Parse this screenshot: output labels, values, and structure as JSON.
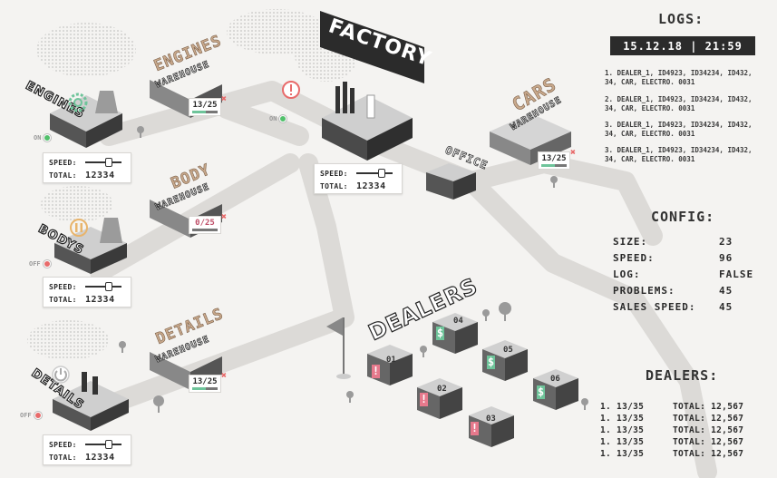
{
  "producers": {
    "engines": {
      "label": "ENGINES",
      "status": "ON",
      "icon": "gear-icon",
      "speed_label": "SPEED:",
      "total_label": "TOTAL:",
      "total": "12334",
      "speed_fraction": 0.55
    },
    "bodys": {
      "label": "BODYS",
      "status": "OFF",
      "icon": "pause-icon",
      "speed_label": "SPEED:",
      "total_label": "TOTAL:",
      "total": "12334",
      "speed_fraction": 0.55
    },
    "details": {
      "label": "DETAILS",
      "status": "OFF",
      "icon": "power-icon",
      "speed_label": "SPEED:",
      "total_label": "TOTAL:",
      "total": "12334",
      "speed_fraction": 0.55
    }
  },
  "warehouses": {
    "engines": {
      "title": "ENGINES",
      "sub": "WAREHOUSE",
      "count": "13/25",
      "fill_fraction": 0.52
    },
    "body": {
      "title": "BODY",
      "sub": "WAREHOUSE",
      "count": "0/25",
      "fill_fraction": 0.0
    },
    "details": {
      "title": "DETAILS",
      "sub": "WAREHOUSE",
      "count": "13/25",
      "fill_fraction": 0.52
    },
    "cars": {
      "title": "CARS",
      "sub": "WAREHOUSE",
      "count": "13/25",
      "fill_fraction": 0.52
    }
  },
  "factory": {
    "label": "FACTORY",
    "status": "ON",
    "alert_icon": "alert-icon",
    "speed_label": "SPEED:",
    "total_label": "TOTAL:",
    "total": "12334",
    "speed_fraction": 0.6
  },
  "office": {
    "label": "OFFICE"
  },
  "dealers_area": {
    "label": "DEALERS",
    "buildings": [
      {
        "num": "01",
        "state": "!"
      },
      {
        "num": "02",
        "state": "!"
      },
      {
        "num": "03",
        "state": "!"
      },
      {
        "num": "04",
        "state": "$"
      },
      {
        "num": "05",
        "state": "$"
      },
      {
        "num": "06",
        "state": "$"
      }
    ]
  },
  "logs": {
    "title": "LOGS:",
    "datetime": "15.12.18 | 21:59",
    "entries": [
      "1. DEALER_1, ID4923, ID34234, ID432, 34, CAR, ELECTRO. 0031",
      "2. DEALER_1, ID4923, ID34234, ID432, 34, CAR, ELECTRO. 0031",
      "3. DEALER_1, ID4923, ID34234, ID432, 34, CAR, ELECTRO. 0031",
      "3. DEALER_1, ID4923, ID34234, ID432, 34, CAR, ELECTRO. 0031"
    ]
  },
  "config": {
    "title": "CONFIG:",
    "rows": [
      {
        "key": "SIZE:",
        "value": "23"
      },
      {
        "key": "SPEED:",
        "value": "96"
      },
      {
        "key": "LOG:",
        "value": "FALSE"
      },
      {
        "key": "PROBLEMS:",
        "value": "45"
      },
      {
        "key": "SALES SPEED:",
        "value": "45"
      }
    ]
  },
  "dealers": {
    "title": "DEALERS:",
    "rows": [
      {
        "n": "1. 13/35",
        "total": "TOTAL: 12,567"
      },
      {
        "n": "1. 13/35",
        "total": "TOTAL: 12,567"
      },
      {
        "n": "1. 13/35",
        "total": "TOTAL: 12,567"
      },
      {
        "n": "1. 13/35",
        "total": "TOTAL: 12,567"
      },
      {
        "n": "1. 13/35",
        "total": "TOTAL: 12,567"
      }
    ]
  },
  "colors": {
    "on": "#52c06b",
    "off": "#e86b6b",
    "warehouse_title": "#c9a98c",
    "ok": "#6ec49a",
    "warn": "#e6798c"
  }
}
